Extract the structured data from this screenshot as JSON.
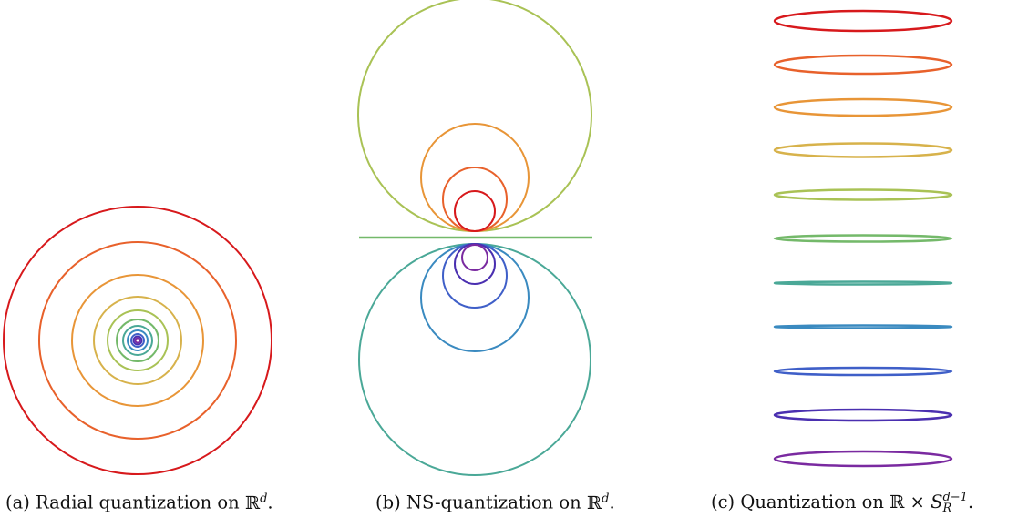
{
  "figure": {
    "captions": {
      "a": {
        "label": "(a)",
        "text": "Radial quantization on ",
        "space": "ℝ",
        "sup": "d",
        "end": "."
      },
      "b": {
        "label": "(b)",
        "text": "NS-quantization on ",
        "space": "ℝ",
        "sup": "d",
        "end": "."
      },
      "c": {
        "label": "(c)",
        "text": "Quantization on ",
        "space": "ℝ × ",
        "sphere": "S",
        "sphere_sup": "d−1",
        "sphere_sub": "R",
        "end": "."
      }
    },
    "palette": [
      "#d7191c",
      "#e8612b",
      "#e89537",
      "#d7b24b",
      "#a9c255",
      "#74b96a",
      "#4aa897",
      "#3a8ac0",
      "#3f5fc8",
      "#4a2fb0",
      "#7a2aa0"
    ]
  }
}
